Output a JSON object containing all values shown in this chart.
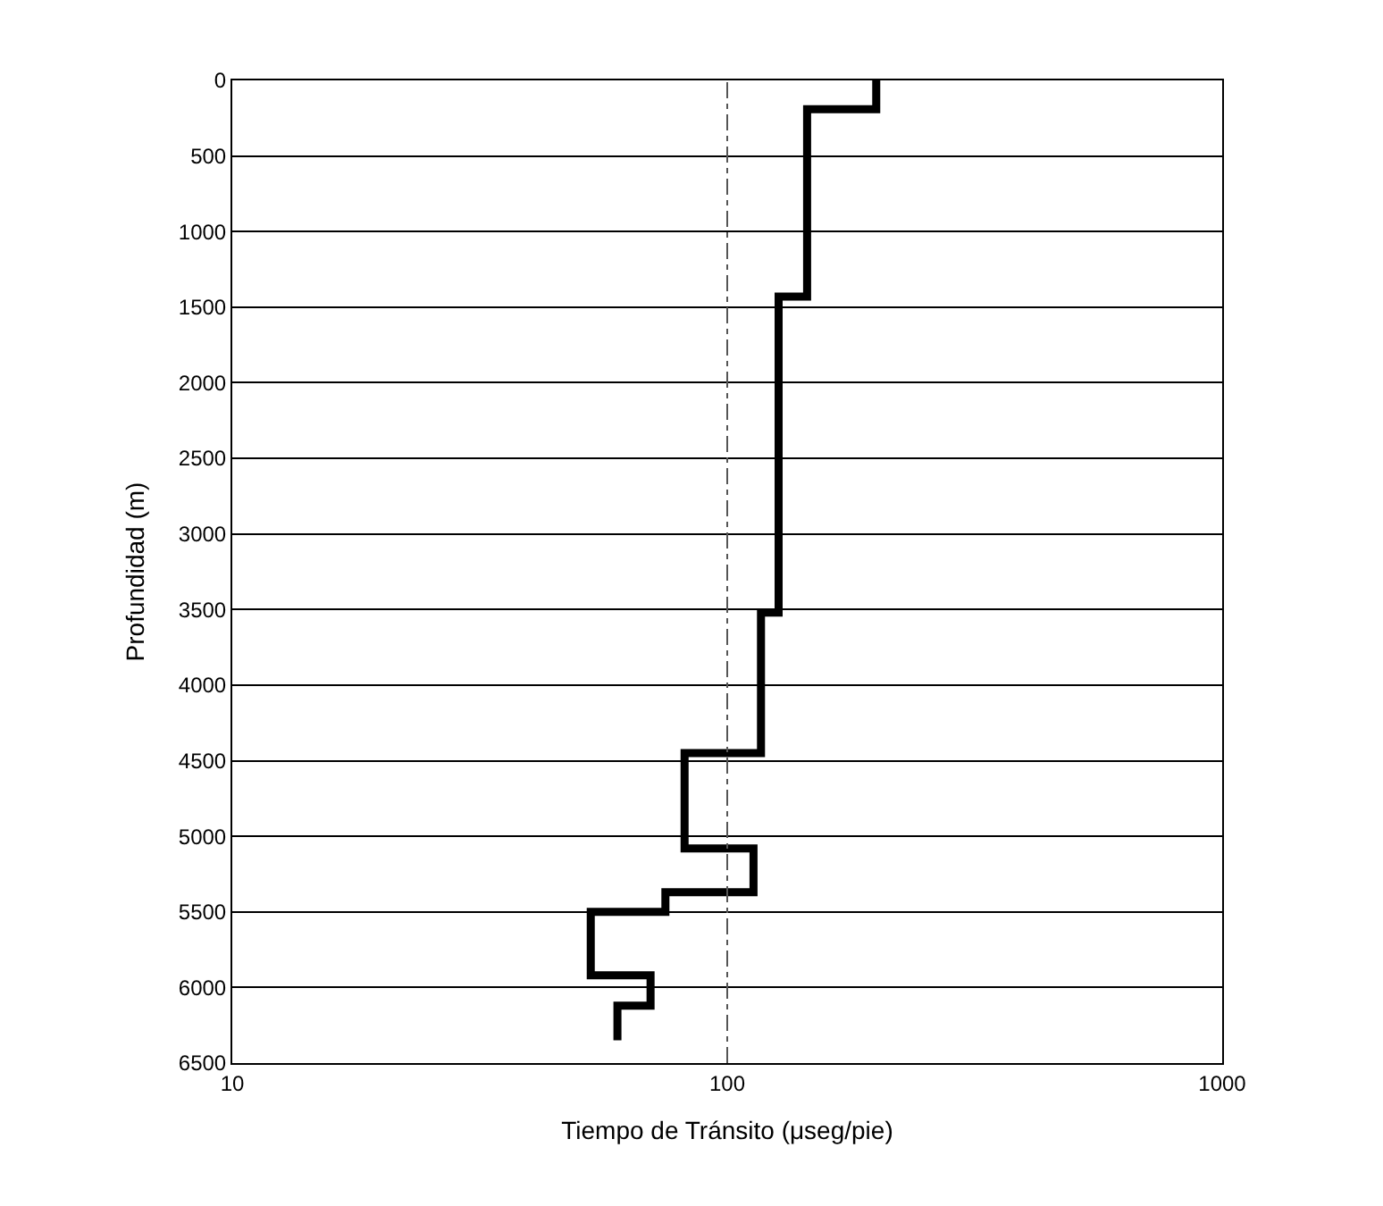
{
  "chart_data": {
    "type": "step",
    "xlabel": "Tiempo de Tránsito (μseg/pie)",
    "ylabel": "Profundidad (m)",
    "x": [
      200,
      145,
      127,
      117,
      82,
      113,
      75,
      53,
      70,
      60,
      60
    ],
    "series": [
      {
        "color": "#000000",
        "values": [
          0,
          190,
          1430,
          3520,
          4450,
          5080,
          5370,
          5500,
          5920,
          6120,
          6350
        ]
      }
    ],
    "log": "x",
    "xlim": [
      10,
      1000
    ],
    "xticks": [
      10,
      100,
      1000
    ],
    "ylim": [
      6500,
      0
    ],
    "yticks": [
      0,
      500,
      1000,
      1500,
      2000,
      2500,
      3000,
      3500,
      4000,
      4500,
      5000,
      5500,
      6000,
      6500
    ],
    "grid": "y",
    "ref_lines": [
      {
        "axis": "x",
        "value": 100,
        "color": "#555555",
        "line_style": "dashed"
      }
    ],
    "marker": "none",
    "line_style": "solid"
  }
}
